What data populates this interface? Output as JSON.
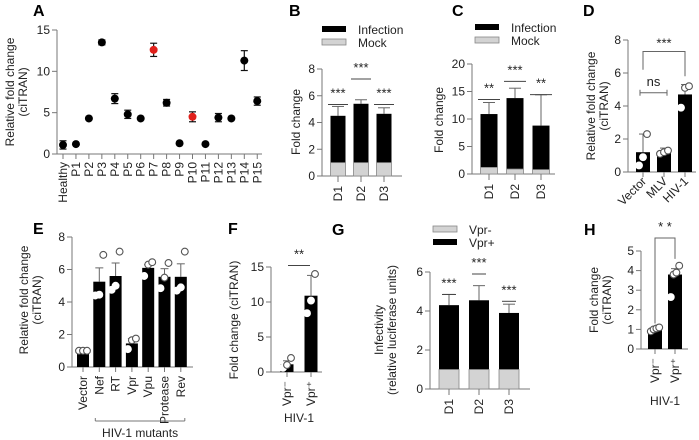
{
  "chart_data": [
    {
      "panel": "A",
      "type": "scatter",
      "ylabel": [
        "Relative fold change",
        "(ciTRAN)"
      ],
      "ylim": [
        0,
        15
      ],
      "yticks": [
        0,
        5,
        10,
        15
      ],
      "categories": [
        "Healthy",
        "P1",
        "P2",
        "P3",
        "P4",
        "P5",
        "P6",
        "P7",
        "P8",
        "P9",
        "P10",
        "P11",
        "P12",
        "P13",
        "P14",
        "P15"
      ],
      "values": [
        1.1,
        1.2,
        4.3,
        13.5,
        6.7,
        4.8,
        4.3,
        12.6,
        6.2,
        1.3,
        4.5,
        1.2,
        4.4,
        4.3,
        11.3,
        6.4
      ],
      "errors": [
        0.5,
        0.2,
        0.2,
        0.3,
        0.6,
        0.5,
        0.2,
        0.8,
        0.4,
        0.2,
        0.6,
        0.2,
        0.5,
        0.2,
        1.2,
        0.5
      ],
      "highlight": [
        false,
        false,
        false,
        false,
        false,
        false,
        false,
        true,
        false,
        false,
        true,
        false,
        false,
        false,
        false,
        false
      ],
      "colors": {
        "normal": "#000000",
        "highlight": "#e0201b"
      }
    },
    {
      "panel": "B",
      "type": "bar",
      "stacked": true,
      "ylabel": "Fold change",
      "ylim": [
        0,
        8
      ],
      "yticks": [
        0,
        2,
        4,
        6,
        8
      ],
      "categories": [
        "D1",
        "D2",
        "D3"
      ],
      "legend": [
        "Infection",
        "Mock"
      ],
      "series": [
        {
          "name": "Mock",
          "values": [
            1,
            1,
            1
          ],
          "color": "#d3d3d3"
        },
        {
          "name": "Infection",
          "values": [
            4.5,
            5.4,
            4.65
          ],
          "color": "#000000"
        }
      ],
      "errors": [
        0.7,
        0.3,
        0.45
      ],
      "significance": [
        "***",
        "***",
        "***"
      ],
      "sig_line_y": [
        5.5,
        7.4,
        5.5
      ]
    },
    {
      "panel": "C",
      "type": "bar",
      "stacked": true,
      "ylabel": "Fold change",
      "ylim": [
        0,
        20
      ],
      "yticks": [
        0,
        5,
        10,
        15,
        20
      ],
      "categories": [
        "D1",
        "D2",
        "D3"
      ],
      "legend": [
        "Infection",
        "Mock"
      ],
      "series": [
        {
          "name": "Mock",
          "values": [
            1.2,
            0.9,
            0.8
          ],
          "color": "#d3d3d3"
        },
        {
          "name": "Infection",
          "values": [
            10.9,
            13.8,
            8.8
          ],
          "color": "#000000"
        }
      ],
      "errors": [
        2.1,
        1.8,
        5.6
      ],
      "significance": [
        "**",
        "***",
        "**"
      ],
      "sig_line_y": [
        13.9,
        17.2,
        14.8
      ]
    },
    {
      "panel": "D",
      "type": "bar",
      "ylabel": [
        "Relative fold change",
        "(ciTRAN)"
      ],
      "ylim": [
        0,
        8
      ],
      "yticks": [
        0,
        2,
        4,
        6,
        8
      ],
      "categories": [
        "Vector",
        "MLV",
        "HIV-1"
      ],
      "values": [
        1.2,
        1.2,
        4.7
      ],
      "errors": [
        1.1,
        0.25,
        0.6
      ],
      "points": [
        [
          0.4,
          0.9,
          2.3
        ],
        [
          1.1,
          1.2,
          1.3
        ],
        [
          3.9,
          5.1,
          5.2
        ]
      ],
      "comparisons": [
        {
          "from": 0,
          "to": 1,
          "label": "ns"
        },
        {
          "from": 0,
          "to": 2,
          "label": "***"
        }
      ]
    },
    {
      "panel": "E",
      "type": "bar",
      "ylabel": [
        "Relative fold change",
        "(ciTRAN)"
      ],
      "ylim": [
        0,
        8
      ],
      "yticks": [
        0,
        2,
        4,
        6,
        8
      ],
      "categories": [
        "Vector",
        "Nef",
        "RT",
        "Vpr",
        "Vpu",
        "Protease",
        "Rev"
      ],
      "values": [
        1.0,
        5.25,
        5.6,
        1.45,
        6.1,
        5.55,
        5.55
      ],
      "errors": [
        0.1,
        0.85,
        0.8,
        0.3,
        0.2,
        0.5,
        0.8
      ],
      "points": [
        [
          1.0,
          1.0,
          1.0
        ],
        [
          4.4,
          4.45,
          6.9
        ],
        [
          4.75,
          5.0,
          7.1
        ],
        [
          1.1,
          1.65,
          1.75
        ],
        [
          5.6,
          6.3,
          6.45
        ],
        [
          4.85,
          5.5,
          6.4
        ],
        [
          4.7,
          4.9,
          7.1
        ]
      ],
      "group_label": "HIV-1 mutants",
      "group_from": 1,
      "group_to": 6
    },
    {
      "panel": "F",
      "type": "bar",
      "ylabel": "Fold change (ciTRAN)",
      "ylim": [
        0,
        15
      ],
      "yticks": [
        0,
        5,
        10,
        15
      ],
      "categories": [
        "Vpr⁻",
        "Vpr⁺"
      ],
      "values": [
        1.1,
        10.9
      ],
      "errors": [
        0.5,
        2.9
      ],
      "points": [
        [
          0.6,
          1.0,
          2.0
        ],
        [
          8.4,
          10.2,
          14.0
        ]
      ],
      "group_label": "HIV-1",
      "significance": "**",
      "sig_line_y": 15.5
    },
    {
      "panel": "G",
      "type": "bar",
      "stacked": true,
      "ylabel": [
        "Infectivity",
        "(relative luciferase units)"
      ],
      "ylim": [
        0,
        6
      ],
      "yticks": [
        0,
        2,
        4,
        6
      ],
      "categories": [
        "D1",
        "D2",
        "D3"
      ],
      "legend": [
        "Vpr-",
        "Vpr+"
      ],
      "series": [
        {
          "name": "Vpr-",
          "values": [
            1,
            1,
            1
          ],
          "color": "#d3d3d3"
        },
        {
          "name": "Vpr+",
          "values": [
            4.3,
            4.55,
            3.9
          ],
          "color": "#000000"
        }
      ],
      "errors": [
        0.55,
        0.75,
        0.45
      ],
      "significance": [
        "***",
        "***",
        "***"
      ],
      "sig_line_y": [
        4.95,
        6.0,
        4.6
      ]
    },
    {
      "panel": "H",
      "type": "bar",
      "ylabel": [
        "Fold change",
        "(ciTRAN)"
      ],
      "ylim": [
        0,
        5
      ],
      "yticks": [
        0,
        1,
        2,
        3,
        4,
        5
      ],
      "categories": [
        "Vpr⁻",
        "Vpr⁺"
      ],
      "values": [
        1.0,
        3.8
      ],
      "errors": [
        0.1,
        0.3
      ],
      "points": [
        [
          0.9,
          1.0,
          1.05,
          1.1
        ],
        [
          2.65,
          3.8,
          3.9,
          4.25
        ]
      ],
      "group_label": "HIV-1",
      "significance": "* *",
      "comparison_bracket": true
    }
  ]
}
